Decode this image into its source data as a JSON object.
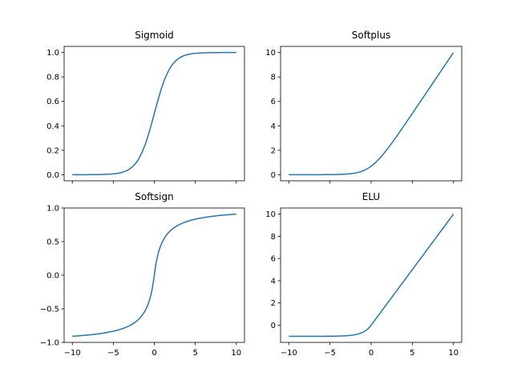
{
  "line_color": "#1f77b4",
  "chart_data": [
    {
      "type": "line",
      "title": "Sigmoid",
      "function": "sigmoid",
      "x": [
        -10,
        -9,
        -8,
        -7,
        -6,
        -5,
        -4,
        -3,
        -2,
        -1,
        0,
        1,
        2,
        3,
        4,
        5,
        6,
        7,
        8,
        9,
        10
      ],
      "y": [
        4.54e-05,
        0.0001234,
        0.0003354,
        0.0009111,
        0.0024726,
        0.0066929,
        0.0179862,
        0.0474259,
        0.1192029,
        0.2689414,
        0.5,
        0.7310586,
        0.8807971,
        0.9525741,
        0.9820138,
        0.9933071,
        0.9975274,
        0.9990889,
        0.9996646,
        0.9998766,
        0.9999546
      ],
      "xlim": [
        -11,
        11
      ],
      "ylim": [
        -0.05,
        1.05
      ],
      "xticks": [
        -10,
        -5,
        0,
        5,
        10
      ],
      "yticks": [
        0.0,
        0.2,
        0.4,
        0.6,
        0.8,
        1.0
      ],
      "ytick_labels": [
        "0.0",
        "0.2",
        "0.4",
        "0.6",
        "0.8",
        "1.0"
      ],
      "xtick_labels": [
        "",
        "",
        "",
        "",
        ""
      ]
    },
    {
      "type": "line",
      "title": "Softplus",
      "function": "softplus",
      "x": [
        -10,
        -9,
        -8,
        -7,
        -6,
        -5,
        -4,
        -3,
        -2,
        -1,
        0,
        1,
        2,
        3,
        4,
        5,
        6,
        7,
        8,
        9,
        10
      ],
      "y": [
        4.54e-05,
        0.0001234,
        0.0003354,
        0.0009115,
        0.0024757,
        0.0067153,
        0.0181499,
        0.0485874,
        0.126928,
        0.3132617,
        0.6931472,
        1.3132617,
        2.126928,
        3.0485874,
        4.0181499,
        5.0067153,
        6.0024757,
        7.0009115,
        8.0003354,
        9.0001234,
        10.0000454
      ],
      "xlim": [
        -11,
        11
      ],
      "ylim": [
        -0.5,
        10.5
      ],
      "xticks": [
        -10,
        -5,
        0,
        5,
        10
      ],
      "yticks": [
        0,
        2,
        4,
        6,
        8,
        10
      ],
      "ytick_labels": [
        "0",
        "2",
        "4",
        "6",
        "8",
        "10"
      ],
      "xtick_labels": [
        "",
        "",
        "",
        "",
        ""
      ]
    },
    {
      "type": "line",
      "title": "Softsign",
      "function": "softsign",
      "x": [
        -10,
        -9,
        -8,
        -7,
        -6,
        -5,
        -4,
        -3,
        -2,
        -1,
        0,
        1,
        2,
        3,
        4,
        5,
        6,
        7,
        8,
        9,
        10
      ],
      "y": [
        -0.9090909,
        -0.9,
        -0.8888889,
        -0.875,
        -0.8571429,
        -0.8333333,
        -0.8,
        -0.75,
        -0.6666667,
        -0.5,
        0.0,
        0.5,
        0.6666667,
        0.75,
        0.8,
        0.8333333,
        0.8571429,
        0.875,
        0.8888889,
        0.9,
        0.9090909
      ],
      "xlim": [
        -11,
        11
      ],
      "ylim": [
        -1.0,
        1.0
      ],
      "xticks": [
        -10,
        -5,
        0,
        5,
        10
      ],
      "yticks": [
        -1.0,
        -0.5,
        0.0,
        0.5,
        1.0
      ],
      "ytick_labels": [
        "−1.0",
        "−0.5",
        "0.0",
        "0.5",
        "1.0"
      ],
      "xtick_labels": [
        "−10",
        "−5",
        "0",
        "5",
        "10"
      ]
    },
    {
      "type": "line",
      "title": "ELU",
      "function": "elu",
      "x": [
        -10,
        -9,
        -8,
        -7,
        -6,
        -5,
        -4,
        -3,
        -2,
        -1,
        0,
        1,
        2,
        3,
        4,
        5,
        6,
        7,
        8,
        9,
        10
      ],
      "y": [
        -0.9999546,
        -0.9998766,
        -0.9996645,
        -0.9990881,
        -0.9975212,
        -0.9932621,
        -0.9816844,
        -0.9502129,
        -0.8646647,
        -0.6321206,
        0.0,
        1,
        2,
        3,
        4,
        5,
        6,
        7,
        8,
        9,
        10
      ],
      "xlim": [
        -11,
        11
      ],
      "ylim": [
        -1.55,
        10.55
      ],
      "xticks": [
        -10,
        -5,
        0,
        5,
        10
      ],
      "yticks": [
        0,
        2,
        4,
        6,
        8,
        10
      ],
      "ytick_labels": [
        "0",
        "2",
        "4",
        "6",
        "8",
        "10"
      ],
      "xtick_labels": [
        "−10",
        "−5",
        "0",
        "5",
        "10"
      ]
    }
  ]
}
